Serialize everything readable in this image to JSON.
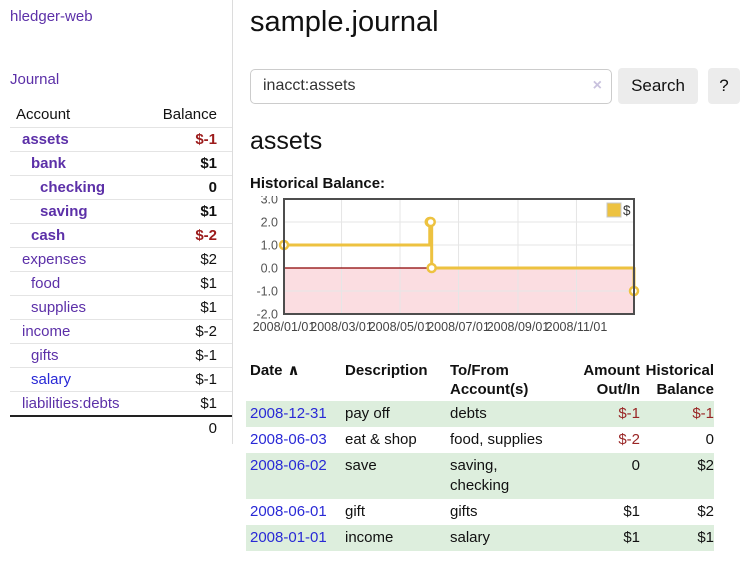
{
  "app": {
    "brand": "hledger-web",
    "nav_journal": "Journal"
  },
  "colors": {
    "link_purple": "#5c30a8",
    "link_blue": "#2929d6",
    "negative_strong": "#9c1b1b",
    "negative_muted": "#bb7272",
    "table_stripe_green": "#ddeedd",
    "series_yellow": "#edc240",
    "below_zero_pink": "#fbdde1",
    "zero_line_red": "#8b0000"
  },
  "sidebar": {
    "columns": {
      "account": "Account",
      "balance": "Balance"
    },
    "rows": [
      {
        "account": "assets",
        "balance": "$-1",
        "level": 1,
        "bold": true,
        "blue": false
      },
      {
        "account": "bank",
        "balance": "$1",
        "level": 2,
        "bold": true,
        "blue": false
      },
      {
        "account": "checking",
        "balance": "0",
        "level": 3,
        "bold": true,
        "blue": false
      },
      {
        "account": "saving",
        "balance": "$1",
        "level": 3,
        "bold": true,
        "blue": false
      },
      {
        "account": "cash",
        "balance": "$-2",
        "level": 2,
        "bold": true,
        "blue": false
      },
      {
        "account": "expenses",
        "balance": "$2",
        "level": 1,
        "bold": false,
        "blue": false
      },
      {
        "account": "food",
        "balance": "$1",
        "level": 2,
        "bold": false,
        "blue": false
      },
      {
        "account": "supplies",
        "balance": "$1",
        "level": 2,
        "bold": false,
        "blue": false
      },
      {
        "account": "income",
        "balance": "$-2",
        "level": 1,
        "bold": false,
        "blue": false
      },
      {
        "account": "gifts",
        "balance": "$-1",
        "level": 2,
        "bold": false,
        "blue": false
      },
      {
        "account": "salary",
        "balance": "$-1",
        "level": 2,
        "bold": false,
        "blue": true
      },
      {
        "account": "liabilities:debts",
        "balance": "$1",
        "level": 1,
        "bold": false,
        "blue": false
      }
    ],
    "total": "0"
  },
  "header": {
    "title": "sample.journal"
  },
  "search": {
    "value": "inacct:assets",
    "clear_icon": "×",
    "button": "Search",
    "help_button": "?"
  },
  "account_page": {
    "title": "assets"
  },
  "chart_data": {
    "type": "line",
    "style": "step",
    "title": "Historical Balance:",
    "series": [
      {
        "name": "$",
        "color": "#edc240",
        "points": [
          {
            "x": "2008-01-01",
            "y": 1
          },
          {
            "x": "2008-06-01",
            "y": 2
          },
          {
            "x": "2008-06-02",
            "y": 2
          },
          {
            "x": "2008-06-03",
            "y": 0
          },
          {
            "x": "2008-12-31",
            "y": -1
          }
        ]
      }
    ],
    "ylim": [
      -2.0,
      3.0
    ],
    "x_range": [
      "2008-01-01",
      "2008-12-31"
    ],
    "yticks": [
      "3.0",
      "2.0",
      "1.0",
      "0.0",
      "-1.0",
      "-2.0"
    ],
    "xticks": [
      "2008/01/01",
      "2008/03/01",
      "2008/05/01",
      "2008/07/01",
      "2008/09/01",
      "2008/11/01"
    ],
    "grid": true,
    "legend_position": "top-right",
    "legend": "$",
    "negative_fill": "#fbdde1",
    "zero_line_color": "#8b0000"
  },
  "register": {
    "col_date": "Date",
    "sort_icon": "∧",
    "col_description": "Description",
    "col_accounts": "To/From Account(s)",
    "col_amount": "Amount Out/In",
    "col_balance": "Historical Balance",
    "rows": [
      {
        "date": "2008-12-31",
        "description": "pay off",
        "accounts": "debts",
        "amount": "$-1",
        "balance": "$-1"
      },
      {
        "date": "2008-06-03",
        "description": "eat & shop",
        "accounts": "food, supplies",
        "amount": "$-2",
        "balance": "0"
      },
      {
        "date": "2008-06-02",
        "description": "save",
        "accounts": "saving, checking",
        "amount": "0",
        "balance": "$2"
      },
      {
        "date": "2008-06-01",
        "description": "gift",
        "accounts": "gifts",
        "amount": "$1",
        "balance": "$2"
      },
      {
        "date": "2008-01-01",
        "description": "income",
        "accounts": "salary",
        "amount": "$1",
        "balance": "$1"
      }
    ]
  }
}
